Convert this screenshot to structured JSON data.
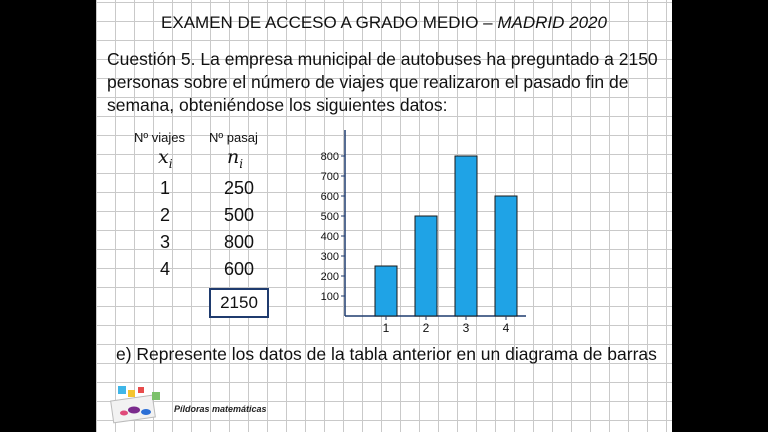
{
  "title": {
    "main": "EXAMEN DE ACCESO A GRADO MEDIO –",
    "italic": "MADRID 2020"
  },
  "question": {
    "text": "Cuestión 5. La empresa municipal de autobuses ha preguntado a 2150 personas sobre el número de viajes que realizaron el pasado fin de semana, obteniéndose los siguientes datos:"
  },
  "table": {
    "col1_header": "Nº viajes",
    "col1_symbol": "x",
    "col1_sub": "i",
    "col2_header": "Nº pasaj",
    "col2_symbol": "n",
    "col2_sub": "i",
    "rows": [
      {
        "x": "1",
        "n": "250"
      },
      {
        "x": "2",
        "n": "500"
      },
      {
        "x": "3",
        "n": "800"
      },
      {
        "x": "4",
        "n": "600"
      }
    ],
    "total": "2150"
  },
  "chart_data": {
    "type": "bar",
    "categories": [
      "1",
      "2",
      "3",
      "4"
    ],
    "values": [
      250,
      500,
      800,
      600
    ],
    "yticks": [
      100,
      200,
      300,
      400,
      500,
      600,
      700,
      800
    ],
    "ylim": [
      0,
      900
    ],
    "bar_color": "#1fa3e6",
    "grid": false
  },
  "part_e": "e) Represente los datos de la tabla anterior en un diagrama de barras",
  "brand": "Píldoras matemáticas"
}
